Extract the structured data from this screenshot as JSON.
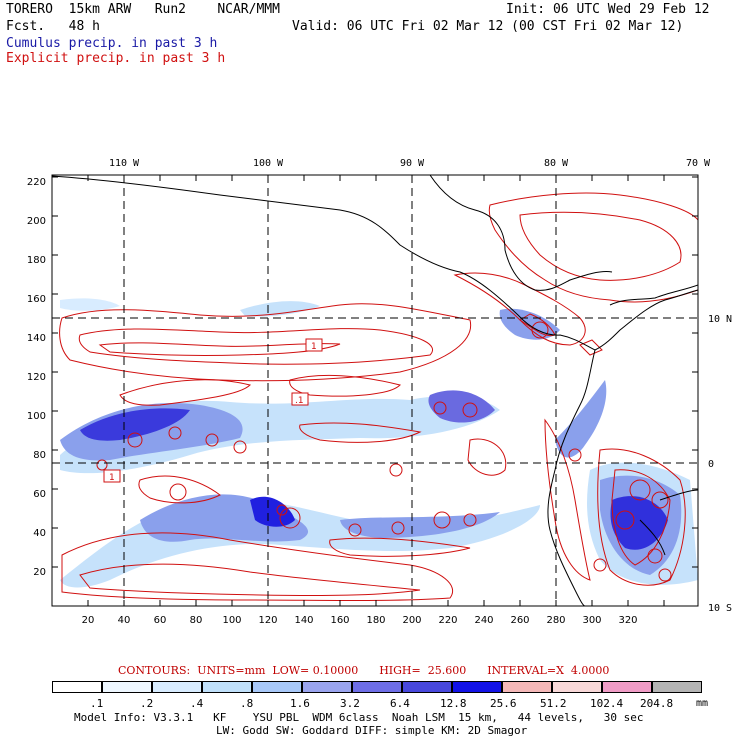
{
  "header": {
    "left_line1": "TORERO  15km ARW   Run2    NCAR/MMM",
    "left_line2": "Fcst.   48 h",
    "right_line1": "Init: 06 UTC Wed 29 Feb 12",
    "right_line2": "Valid: 06 UTC Fri 02 Mar 12 (00 CST Fri 02 Mar 12)",
    "field1": "Cumulus precip. in past 3 h",
    "field2": "Explicit precip. in past 3 h",
    "field1_color": "#1a1aa6",
    "field2_color": "#d01010"
  },
  "map": {
    "lon_labels": [
      "110 W",
      "100 W",
      "90 W",
      "80 W",
      "70 W"
    ],
    "lat_labels_right": [
      "10 N",
      "0",
      "10 S"
    ],
    "y_ticks": [
      "220",
      "200",
      "180",
      "160",
      "140",
      "120",
      "100",
      "80",
      "60",
      "40",
      "20"
    ],
    "x_ticks": [
      "20",
      "40",
      "60",
      "80",
      "100",
      "120",
      "140",
      "160",
      "180",
      "200",
      "220",
      "240",
      "260",
      "280",
      "300",
      "320"
    ],
    "contour_labels": [
      "1",
      ".1",
      "1"
    ],
    "colors": {
      "contour": "#d01010",
      "coast": "#000000",
      "grid": "#000000"
    }
  },
  "contours": {
    "label": "CONTOURS:  UNITS=mm  LOW= 0.10000      HIGH=  25.600      INTERVAL=X  4.0000"
  },
  "legend": {
    "unit": "mm",
    "colors": [
      "#ffffff",
      "#eef7ff",
      "#d8ecff",
      "#c0e0fa",
      "#a8c8f8",
      "#9aa4ee",
      "#6e6ee6",
      "#4848dc",
      "#1212e6",
      "#f4b8b8",
      "#f8d8d8",
      "#f09cc6",
      "#b4b4b4",
      "#3c3c3c",
      "#d8a8f4"
    ],
    "labels": [
      ".1",
      ".2",
      ".4",
      ".8",
      "1.6",
      "3.2",
      "6.4",
      "12.8",
      "25.6",
      "51.2",
      "102.4",
      "204.8"
    ]
  },
  "footer": {
    "line1": "Model Info: V3.3.1   KF    YSU PBL  WDM 6class  Noah LSM  15 km,   44 levels,   30 sec",
    "line2": "LW: Godd SW: Goddard DIFF: simple KM: 2D Smagor"
  }
}
